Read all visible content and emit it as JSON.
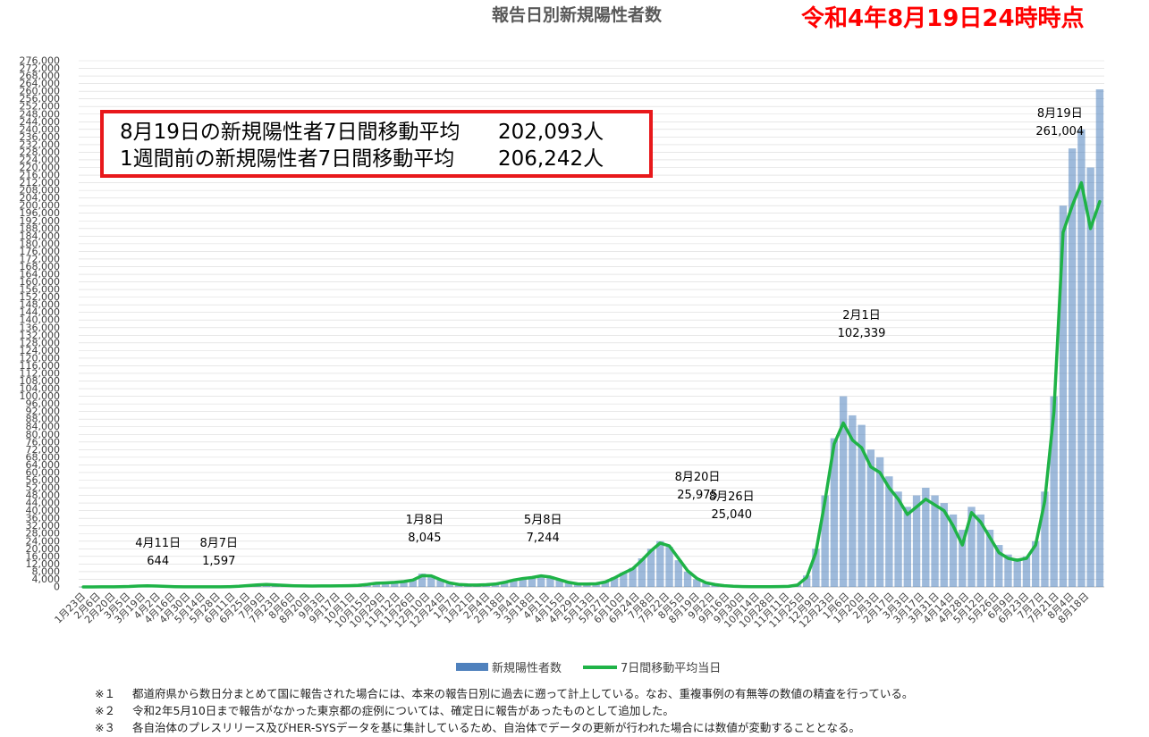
{
  "title": "報告日別新規陽性者数",
  "as_of": "令和4年8月19日24時時点",
  "summary": {
    "row1_label": "8月19日の新規陽性者7日間移動平均",
    "row1_value": "202,093人",
    "row2_label": "1週間前の新規陽性者7日間移動平均",
    "row2_value": "206,242人"
  },
  "legend": {
    "bars": "新規陽性者数",
    "line": "7日間移動平均当日"
  },
  "notes": [
    {
      "mark": "※１",
      "text": "都道府県から数日分まとめて国に報告された場合には、本来の報告日別に過去に遡って計上している。なお、重複事例の有無等の数値の精査を行っている。"
    },
    {
      "mark": "※２",
      "text": "令和2年5月10日まで報告がなかった東京都の症例については、確定日に報告があったものとして追加した。"
    },
    {
      "mark": "※３",
      "text": "各自治体のプレスリリース及びHER-SYSデータを基に集計しているため、自治体でデータの更新が行われた場合には数値が変動することとなる。"
    }
  ],
  "colors": {
    "bars": "#4f81bd",
    "line": "#1fb347",
    "as_of": "#ff0000",
    "box_border": "#e8181b",
    "grid": "#d9d9d9"
  },
  "chart_data": {
    "type": "bar",
    "series_names": [
      "新規陽性者数",
      "7日間移動平均当日"
    ],
    "ylim": [
      0,
      276000
    ],
    "y_ticks": [
      "0",
      "4,000",
      "8,000",
      "12,000",
      "16,000",
      "20,000",
      "24,000",
      "28,000",
      "32,000",
      "36,000",
      "40,000",
      "44,000",
      "48,000",
      "52,000",
      "56,000",
      "60,000",
      "64,000",
      "68,000",
      "72,000",
      "76,000",
      "80,000",
      "84,000",
      "88,000",
      "92,000",
      "96,000",
      "100,000",
      "104,000",
      "108,000",
      "112,000",
      "116,000",
      "120,000",
      "124,000",
      "128,000",
      "132,000",
      "136,000",
      "140,000",
      "144,000",
      "148,000",
      "152,000",
      "156,000",
      "160,000",
      "164,000",
      "168,000",
      "172,000",
      "176,000",
      "180,000",
      "184,000",
      "188,000",
      "192,000",
      "196,000",
      "200,000",
      "204,000",
      "208,000",
      "212,000",
      "216,000",
      "220,000",
      "224,000",
      "228,000",
      "232,000",
      "236,000",
      "240,000",
      "244,000",
      "248,000",
      "252,000",
      "256,000",
      "260,000",
      "264,000",
      "268,000",
      "272,000",
      "276,000"
    ],
    "x_ticks": [
      "1月23日",
      "2月6日",
      "2月20日",
      "3月5日",
      "3月19日",
      "4月2日",
      "4月16日",
      "4月30日",
      "5月14日",
      "5月28日",
      "6月11日",
      "6月25日",
      "7月9日",
      "7月23日",
      "8月6日",
      "8月20日",
      "9月3日",
      "9月17日",
      "10月1日",
      "10月15日",
      "10月29日",
      "11月12日",
      "11月26日",
      "12月10日",
      "12月24日",
      "1月7日",
      "1月21日",
      "2月4日",
      "2月18日",
      "3月4日",
      "3月18日",
      "4月1日",
      "4月15日",
      "4月29日",
      "5月13日",
      "5月27日",
      "6月10日",
      "6月24日",
      "7月8日",
      "7月22日",
      "8月5日",
      "8月19日",
      "9月2日",
      "9月16日",
      "9月30日",
      "10月14日",
      "10月28日",
      "11月11日",
      "11月25日",
      "12月9日",
      "12月23日",
      "1月6日",
      "1月20日",
      "2月3日",
      "2月17日",
      "3月3日",
      "3月17日",
      "3月31日",
      "4月14日",
      "4月28日",
      "5月12日",
      "5月26日",
      "6月9日",
      "6月23日",
      "7月7日",
      "7月21日",
      "8月4日",
      "8月18日"
    ],
    "annotations": [
      {
        "label": "4月11日",
        "value": "644",
        "x_index": 11.1,
        "y": 644
      },
      {
        "label": "8月7日",
        "value": "1,597",
        "x_index": 20.0,
        "y": 1597
      },
      {
        "label": "1月8日",
        "value": "8,045",
        "x_index": 50.1,
        "y": 8045
      },
      {
        "label": "5月8日",
        "value": "7,244",
        "x_index": 67.4,
        "y": 7244
      },
      {
        "label": "8月20日",
        "value": "25,975",
        "x_index": 90.0,
        "y": 25975
      },
      {
        "label": "8月26日",
        "value": "25,040",
        "x_index": 95.0,
        "y": 25040
      },
      {
        "label": "2月1日",
        "value": "102,339",
        "x_index": 114.0,
        "y": 102339
      },
      {
        "label": "8月19日",
        "value": "261,004",
        "x_index": 143.0,
        "y": 261004
      }
    ],
    "weekly": [
      {
        "x": 0,
        "new_cases": 10,
        "moving_avg": 10
      },
      {
        "x": 1,
        "new_cases": 20,
        "moving_avg": 20
      },
      {
        "x": 2,
        "new_cases": 50,
        "moving_avg": 45
      },
      {
        "x": 3,
        "new_cases": 80,
        "moving_avg": 70
      },
      {
        "x": 4,
        "new_cases": 120,
        "moving_avg": 120
      },
      {
        "x": 5,
        "new_cases": 300,
        "moving_avg": 250
      },
      {
        "x": 6,
        "new_cases": 530,
        "moving_avg": 450
      },
      {
        "x": 7,
        "new_cases": 600,
        "moving_avg": 540
      },
      {
        "x": 8,
        "new_cases": 450,
        "moving_avg": 450
      },
      {
        "x": 9,
        "new_cases": 250,
        "moving_avg": 280
      },
      {
        "x": 10,
        "new_cases": 150,
        "moving_avg": 160
      },
      {
        "x": 11,
        "new_cases": 60,
        "moving_avg": 70
      },
      {
        "x": 12,
        "new_cases": 40,
        "moving_avg": 40
      },
      {
        "x": 13,
        "new_cases": 40,
        "moving_avg": 40
      },
      {
        "x": 14,
        "new_cases": 50,
        "moving_avg": 45
      },
      {
        "x": 15,
        "new_cases": 70,
        "moving_avg": 60
      },
      {
        "x": 16,
        "new_cases": 150,
        "moving_avg": 130
      },
      {
        "x": 17,
        "new_cases": 400,
        "moving_avg": 330
      },
      {
        "x": 18,
        "new_cases": 800,
        "moving_avg": 700
      },
      {
        "x": 19,
        "new_cases": 1300,
        "moving_avg": 1100
      },
      {
        "x": 20,
        "new_cases": 1500,
        "moving_avg": 1300
      },
      {
        "x": 21,
        "new_cases": 1100,
        "moving_avg": 1050
      },
      {
        "x": 22,
        "new_cases": 800,
        "moving_avg": 800
      },
      {
        "x": 23,
        "new_cases": 600,
        "moving_avg": 600
      },
      {
        "x": 24,
        "new_cases": 500,
        "moving_avg": 500
      },
      {
        "x": 25,
        "new_cases": 480,
        "moving_avg": 480
      },
      {
        "x": 26,
        "new_cases": 520,
        "moving_avg": 510
      },
      {
        "x": 27,
        "new_cases": 500,
        "moving_avg": 500
      },
      {
        "x": 28,
        "new_cases": 550,
        "moving_avg": 540
      },
      {
        "x": 29,
        "new_cases": 700,
        "moving_avg": 670
      },
      {
        "x": 30,
        "new_cases": 900,
        "moving_avg": 850
      },
      {
        "x": 31,
        "new_cases": 1400,
        "moving_avg": 1300
      },
      {
        "x": 32,
        "new_cases": 2000,
        "moving_avg": 1900
      },
      {
        "x": 33,
        "new_cases": 2200,
        "moving_avg": 2100
      },
      {
        "x": 34,
        "new_cases": 2500,
        "moving_avg": 2400
      },
      {
        "x": 35,
        "new_cases": 3000,
        "moving_avg": 2800
      },
      {
        "x": 36,
        "new_cases": 4200,
        "moving_avg": 3600
      },
      {
        "x": 37,
        "new_cases": 7000,
        "moving_avg": 5900
      },
      {
        "x": 38,
        "new_cases": 6000,
        "moving_avg": 5800
      },
      {
        "x": 39,
        "new_cases": 4000,
        "moving_avg": 3800
      },
      {
        "x": 40,
        "new_cases": 2200,
        "moving_avg": 2100
      },
      {
        "x": 41,
        "new_cases": 1300,
        "moving_avg": 1300
      },
      {
        "x": 42,
        "new_cases": 1100,
        "moving_avg": 1100
      },
      {
        "x": 43,
        "new_cases": 1000,
        "moving_avg": 1000
      },
      {
        "x": 44,
        "new_cases": 1200,
        "moving_avg": 1150
      },
      {
        "x": 45,
        "new_cases": 1600,
        "moving_avg": 1500
      },
      {
        "x": 46,
        "new_cases": 2600,
        "moving_avg": 2400
      },
      {
        "x": 47,
        "new_cases": 3800,
        "moving_avg": 3600
      },
      {
        "x": 48,
        "new_cases": 4600,
        "moving_avg": 4400
      },
      {
        "x": 49,
        "new_cases": 5200,
        "moving_avg": 4900
      },
      {
        "x": 50,
        "new_cases": 6200,
        "moving_avg": 5800
      },
      {
        "x": 51,
        "new_cases": 5600,
        "moving_avg": 5200
      },
      {
        "x": 52,
        "new_cases": 4000,
        "moving_avg": 3800
      },
      {
        "x": 53,
        "new_cases": 2500,
        "moving_avg": 2400
      },
      {
        "x": 54,
        "new_cases": 1700,
        "moving_avg": 1600
      },
      {
        "x": 55,
        "new_cases": 1500,
        "moving_avg": 1500
      },
      {
        "x": 56,
        "new_cases": 1700,
        "moving_avg": 1650
      },
      {
        "x": 57,
        "new_cases": 2800,
        "moving_avg": 2600
      },
      {
        "x": 58,
        "new_cases": 5000,
        "moving_avg": 4700
      },
      {
        "x": 59,
        "new_cases": 7500,
        "moving_avg": 7200
      },
      {
        "x": 60,
        "new_cases": 10000,
        "moving_avg": 9500
      },
      {
        "x": 61,
        "new_cases": 15000,
        "moving_avg": 14000
      },
      {
        "x": 62,
        "new_cases": 20000,
        "moving_avg": 19000
      },
      {
        "x": 63,
        "new_cases": 24000,
        "moving_avg": 23000
      },
      {
        "x": 64,
        "new_cases": 21000,
        "moving_avg": 21500
      },
      {
        "x": 65,
        "new_cases": 14000,
        "moving_avg": 15000
      },
      {
        "x": 66,
        "new_cases": 8000,
        "moving_avg": 8500
      },
      {
        "x": 67,
        "new_cases": 4000,
        "moving_avg": 4500
      },
      {
        "x": 68,
        "new_cases": 2000,
        "moving_avg": 2200
      },
      {
        "x": 69,
        "new_cases": 1100,
        "moving_avg": 1200
      },
      {
        "x": 70,
        "new_cases": 600,
        "moving_avg": 650
      },
      {
        "x": 71,
        "new_cases": 300,
        "moving_avg": 320
      },
      {
        "x": 72,
        "new_cases": 200,
        "moving_avg": 210
      },
      {
        "x": 73,
        "new_cases": 150,
        "moving_avg": 150
      },
      {
        "x": 74,
        "new_cases": 150,
        "moving_avg": 150
      },
      {
        "x": 75,
        "new_cases": 150,
        "moving_avg": 150
      },
      {
        "x": 76,
        "new_cases": 200,
        "moving_avg": 190
      },
      {
        "x": 77,
        "new_cases": 300,
        "moving_avg": 280
      },
      {
        "x": 78,
        "new_cases": 1200,
        "moving_avg": 1000
      },
      {
        "x": 79,
        "new_cases": 6000,
        "moving_avg": 5000
      },
      {
        "x": 80,
        "new_cases": 20000,
        "moving_avg": 18000
      },
      {
        "x": 81,
        "new_cases": 48000,
        "moving_avg": 45000
      },
      {
        "x": 82,
        "new_cases": 78000,
        "moving_avg": 75000
      },
      {
        "x": 83,
        "new_cases": 100000,
        "moving_avg": 86000
      },
      {
        "x": 84,
        "new_cases": 90000,
        "moving_avg": 77000
      },
      {
        "x": 85,
        "new_cases": 85000,
        "moving_avg": 73000
      },
      {
        "x": 86,
        "new_cases": 72000,
        "moving_avg": 63000
      },
      {
        "x": 87,
        "new_cases": 68000,
        "moving_avg": 60000
      },
      {
        "x": 88,
        "new_cases": 58000,
        "moving_avg": 52000
      },
      {
        "x": 89,
        "new_cases": 50000,
        "moving_avg": 46000
      },
      {
        "x": 90,
        "new_cases": 42000,
        "moving_avg": 38000
      },
      {
        "x": 91,
        "new_cases": 48000,
        "moving_avg": 42000
      },
      {
        "x": 92,
        "new_cases": 52000,
        "moving_avg": 46000
      },
      {
        "x": 93,
        "new_cases": 48000,
        "moving_avg": 43000
      },
      {
        "x": 94,
        "new_cases": 44000,
        "moving_avg": 40000
      },
      {
        "x": 95,
        "new_cases": 38000,
        "moving_avg": 32000
      },
      {
        "x": 96,
        "new_cases": 30000,
        "moving_avg": 22000
      },
      {
        "x": 97,
        "new_cases": 42000,
        "moving_avg": 39000
      },
      {
        "x": 98,
        "new_cases": 38000,
        "moving_avg": 34000
      },
      {
        "x": 99,
        "new_cases": 30000,
        "moving_avg": 26000
      },
      {
        "x": 100,
        "new_cases": 22000,
        "moving_avg": 18000
      },
      {
        "x": 101,
        "new_cases": 17000,
        "moving_avg": 15000
      },
      {
        "x": 102,
        "new_cases": 15000,
        "moving_avg": 14000
      },
      {
        "x": 103,
        "new_cases": 16000,
        "moving_avg": 15000
      },
      {
        "x": 104,
        "new_cases": 24000,
        "moving_avg": 22000
      },
      {
        "x": 105,
        "new_cases": 50000,
        "moving_avg": 45000
      },
      {
        "x": 106,
        "new_cases": 100000,
        "moving_avg": 92000
      },
      {
        "x": 107,
        "new_cases": 200000,
        "moving_avg": 186000
      },
      {
        "x": 108,
        "new_cases": 230000,
        "moving_avg": 200000
      },
      {
        "x": 109,
        "new_cases": 240000,
        "moving_avg": 212000
      },
      {
        "x": 110,
        "new_cases": 220000,
        "moving_avg": 188000
      },
      {
        "x": 111,
        "new_cases": 261004,
        "moving_avg": 202093
      }
    ]
  }
}
